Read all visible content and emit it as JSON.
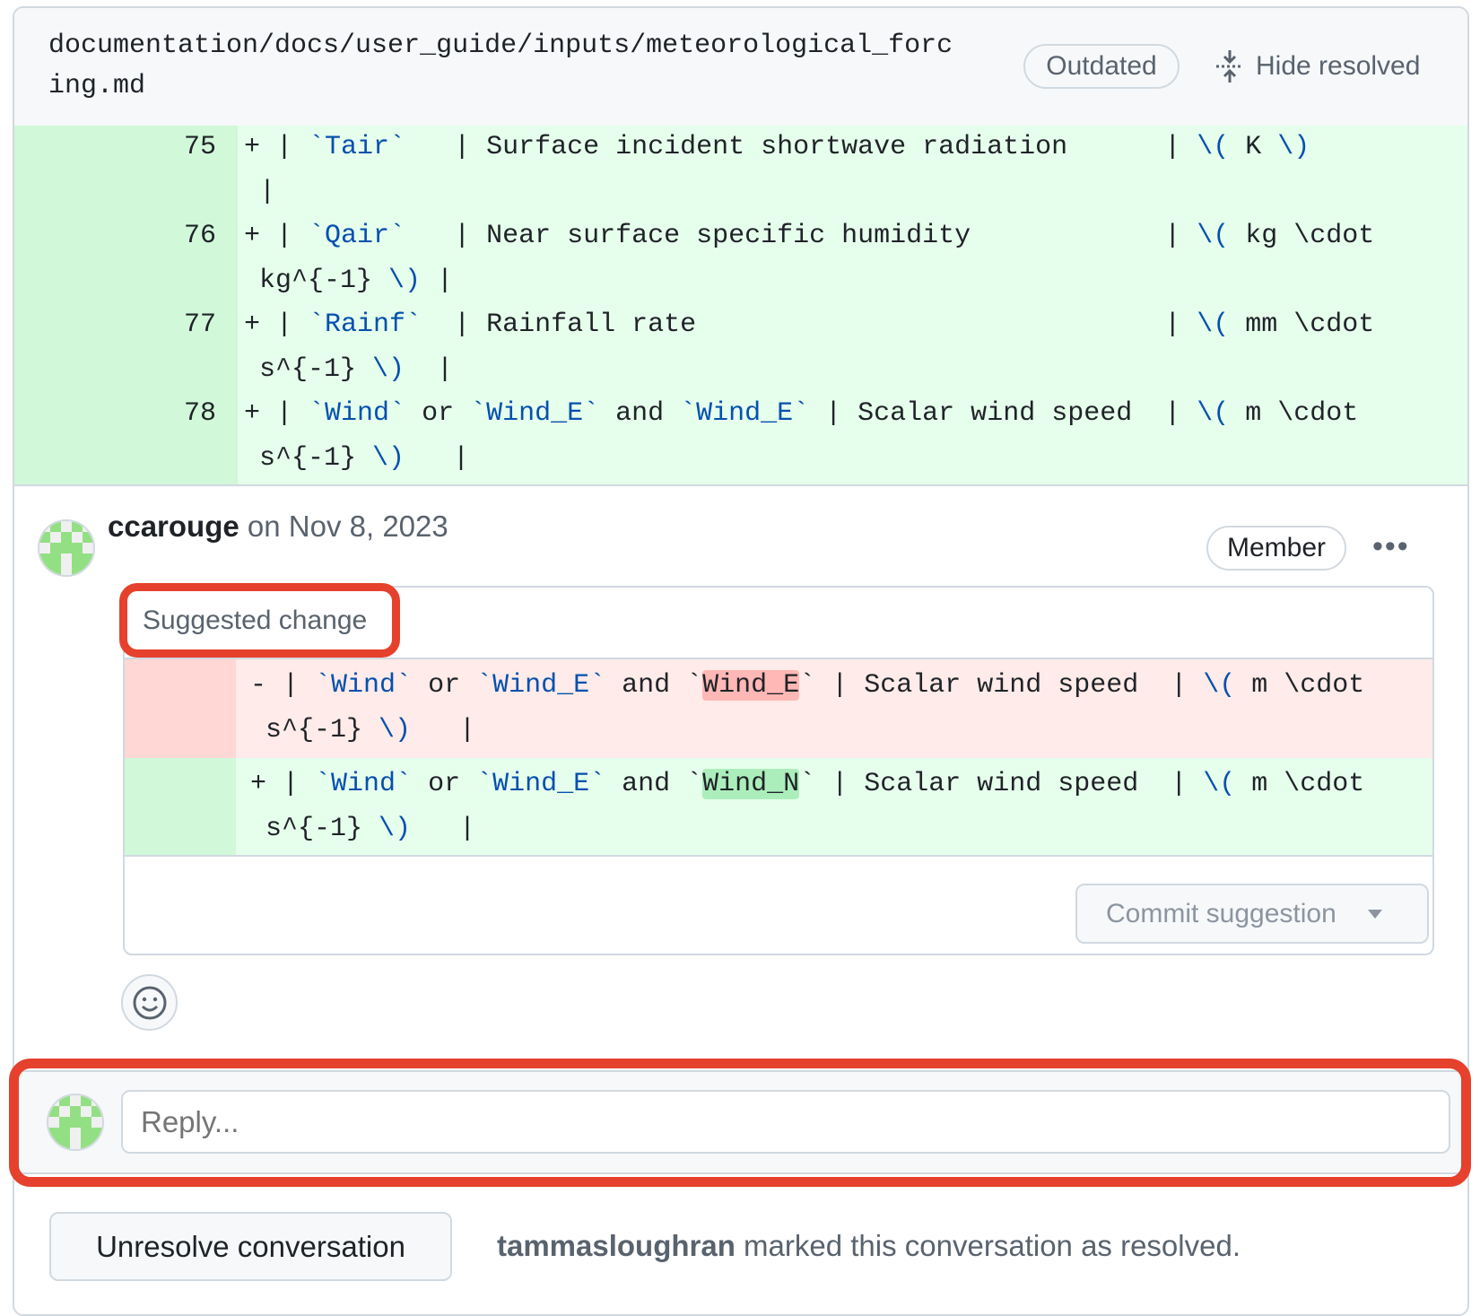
{
  "file": {
    "path": "documentation/docs/user_guide/inputs/meteorological_forcing.md",
    "outdated_label": "Outdated",
    "hide_resolved_label": "Hide resolved"
  },
  "colors": {
    "addition_bg": "#e6ffec",
    "deletion_bg": "#ffebe9",
    "code_blue": "#0550ae",
    "highlight_ring": "#e5412c"
  },
  "diff": [
    {
      "num": "75",
      "sign": "+",
      "lines": [
        [
          [
            "| ",
            ""
          ],
          [
            "`Tair`",
            "b"
          ],
          [
            "   | Surface incident shortwave radiation      | ",
            ""
          ],
          [
            "\\( ",
            "b"
          ],
          [
            "K ",
            ""
          ],
          [
            "\\)",
            "b"
          ]
        ],
        [
          [
            "|",
            ""
          ]
        ]
      ]
    },
    {
      "num": "76",
      "sign": "+",
      "lines": [
        [
          [
            "| ",
            ""
          ],
          [
            "`Qair`",
            "b"
          ],
          [
            "   | Near surface specific humidity            | ",
            ""
          ],
          [
            "\\( ",
            "b"
          ],
          [
            "kg \\cdot",
            ""
          ]
        ],
        [
          [
            "kg^{-1} ",
            ""
          ],
          [
            "\\)",
            "b"
          ],
          [
            " |",
            ""
          ]
        ]
      ]
    },
    {
      "num": "77",
      "sign": "+",
      "lines": [
        [
          [
            "| ",
            ""
          ],
          [
            "`Rainf`",
            "b"
          ],
          [
            "  | Rainfall rate                             | ",
            ""
          ],
          [
            "\\( ",
            "b"
          ],
          [
            "mm \\cdot",
            ""
          ]
        ],
        [
          [
            "s^{-1} ",
            ""
          ],
          [
            "\\)",
            "b"
          ],
          [
            "  |",
            ""
          ]
        ]
      ]
    },
    {
      "num": "78",
      "sign": "+",
      "lines": [
        [
          [
            "| ",
            ""
          ],
          [
            "`Wind`",
            "b"
          ],
          [
            " or ",
            ""
          ],
          [
            "`Wind_E`",
            "b"
          ],
          [
            " and ",
            ""
          ],
          [
            "`Wind_E`",
            "b"
          ],
          [
            " | Scalar wind speed  | ",
            ""
          ],
          [
            "\\( ",
            "b"
          ],
          [
            "m \\cdot",
            ""
          ]
        ],
        [
          [
            "s^{-1} ",
            ""
          ],
          [
            "\\)",
            "b"
          ],
          [
            "   |",
            ""
          ]
        ]
      ]
    }
  ],
  "comment": {
    "author": "ccarouge",
    "date": " on Nov 8, 2023",
    "role": "Member",
    "more_label": "•••"
  },
  "suggestion": {
    "label": "Suggested change",
    "removed": {
      "sign": "-",
      "lines": [
        [
          [
            "| ",
            ""
          ],
          [
            "`Wind`",
            "b"
          ],
          [
            " or ",
            ""
          ],
          [
            "`Wind_E`",
            "b"
          ],
          [
            " and ",
            ""
          ],
          [
            "`",
            ""
          ],
          [
            "Wind_E",
            "hlr"
          ],
          [
            "`",
            ""
          ],
          [
            " | Scalar wind speed  | ",
            ""
          ],
          [
            "\\( ",
            "b"
          ],
          [
            "m \\cdot",
            ""
          ]
        ],
        [
          [
            "s^{-1} ",
            ""
          ],
          [
            "\\)",
            "b"
          ],
          [
            "   |",
            ""
          ]
        ]
      ]
    },
    "added": {
      "sign": "+",
      "lines": [
        [
          [
            "| ",
            ""
          ],
          [
            "`Wind`",
            "b"
          ],
          [
            " or ",
            ""
          ],
          [
            "`Wind_E`",
            "b"
          ],
          [
            " and ",
            ""
          ],
          [
            "`",
            ""
          ],
          [
            "Wind_N",
            "hlg"
          ],
          [
            "`",
            ""
          ],
          [
            " | Scalar wind speed  | ",
            ""
          ],
          [
            "\\( ",
            "b"
          ],
          [
            "m \\cdot",
            ""
          ]
        ],
        [
          [
            "s^{-1} ",
            ""
          ],
          [
            "\\)",
            "b"
          ],
          [
            "   |",
            ""
          ]
        ]
      ]
    },
    "commit_label": "Commit suggestion"
  },
  "reply": {
    "placeholder": "Reply..."
  },
  "resolution": {
    "button_label": "Unresolve conversation",
    "user": "tammasloughran",
    "message": " marked this conversation as resolved."
  }
}
